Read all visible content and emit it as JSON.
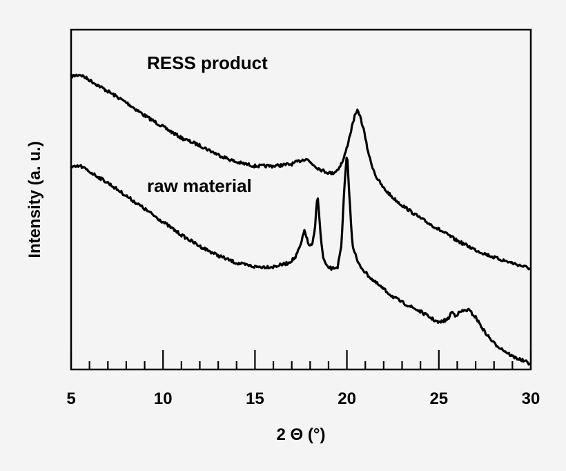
{
  "chart_data": {
    "type": "line",
    "title": "",
    "xlabel": "2 Θ (°)",
    "ylabel": "Intensity (a. u.)",
    "xlim": [
      5,
      30
    ],
    "x_ticks": [
      5,
      10,
      15,
      20,
      25,
      30
    ],
    "x_minor_step": 1,
    "y_ticks_shown": false,
    "grid": false,
    "legend": "none",
    "series": [
      {
        "name": "RESS product",
        "color": "#000000",
        "x": [
          5.0,
          5.5,
          6.0,
          7.0,
          8.0,
          9.0,
          10.0,
          11.0,
          12.0,
          13.0,
          14.0,
          15.0,
          16.0,
          17.0,
          17.5,
          17.8,
          18.0,
          18.4,
          18.8,
          19.2,
          19.5,
          19.8,
          20.0,
          20.2,
          20.4,
          20.6,
          20.7,
          20.9,
          21.1,
          21.3,
          21.6,
          22.0,
          22.5,
          23.0,
          24.0,
          25.0,
          26.0,
          27.0,
          28.0,
          29.0,
          30.0
        ],
        "values": [
          7.85,
          7.9,
          7.75,
          7.45,
          7.15,
          6.8,
          6.5,
          6.2,
          6.0,
          5.75,
          5.55,
          5.45,
          5.45,
          5.5,
          5.6,
          5.65,
          5.55,
          5.4,
          5.3,
          5.25,
          5.35,
          5.6,
          5.95,
          6.35,
          6.75,
          6.95,
          6.8,
          6.45,
          5.95,
          5.55,
          5.15,
          4.85,
          4.6,
          4.4,
          4.05,
          3.75,
          3.45,
          3.2,
          3.0,
          2.85,
          2.7
        ]
      },
      {
        "name": "raw material",
        "color": "#000000",
        "x": [
          5.0,
          5.5,
          6.0,
          7.0,
          8.0,
          9.0,
          10.0,
          11.0,
          12.0,
          13.0,
          14.0,
          15.0,
          16.0,
          16.8,
          17.2,
          17.5,
          17.7,
          17.9,
          18.1,
          18.25,
          18.4,
          18.55,
          18.7,
          18.9,
          19.2,
          19.5,
          19.7,
          19.85,
          20.0,
          20.15,
          20.3,
          20.6,
          21.0,
          21.5,
          22.0,
          22.5,
          23.0,
          24.0,
          25.0,
          25.5,
          25.7,
          25.9,
          26.2,
          26.6,
          27.0,
          27.5,
          28.0,
          29.0,
          30.0
        ],
        "values": [
          5.4,
          5.45,
          5.3,
          5.0,
          4.65,
          4.3,
          3.95,
          3.6,
          3.3,
          3.05,
          2.85,
          2.75,
          2.75,
          2.85,
          3.0,
          3.35,
          3.75,
          3.35,
          3.3,
          3.7,
          4.75,
          3.7,
          3.0,
          2.75,
          2.7,
          2.75,
          3.3,
          4.75,
          5.85,
          4.5,
          3.35,
          2.85,
          2.6,
          2.35,
          2.15,
          1.95,
          1.8,
          1.55,
          1.25,
          1.35,
          1.55,
          1.45,
          1.55,
          1.6,
          1.4,
          1.0,
          0.7,
          0.35,
          0.15
        ]
      }
    ]
  }
}
